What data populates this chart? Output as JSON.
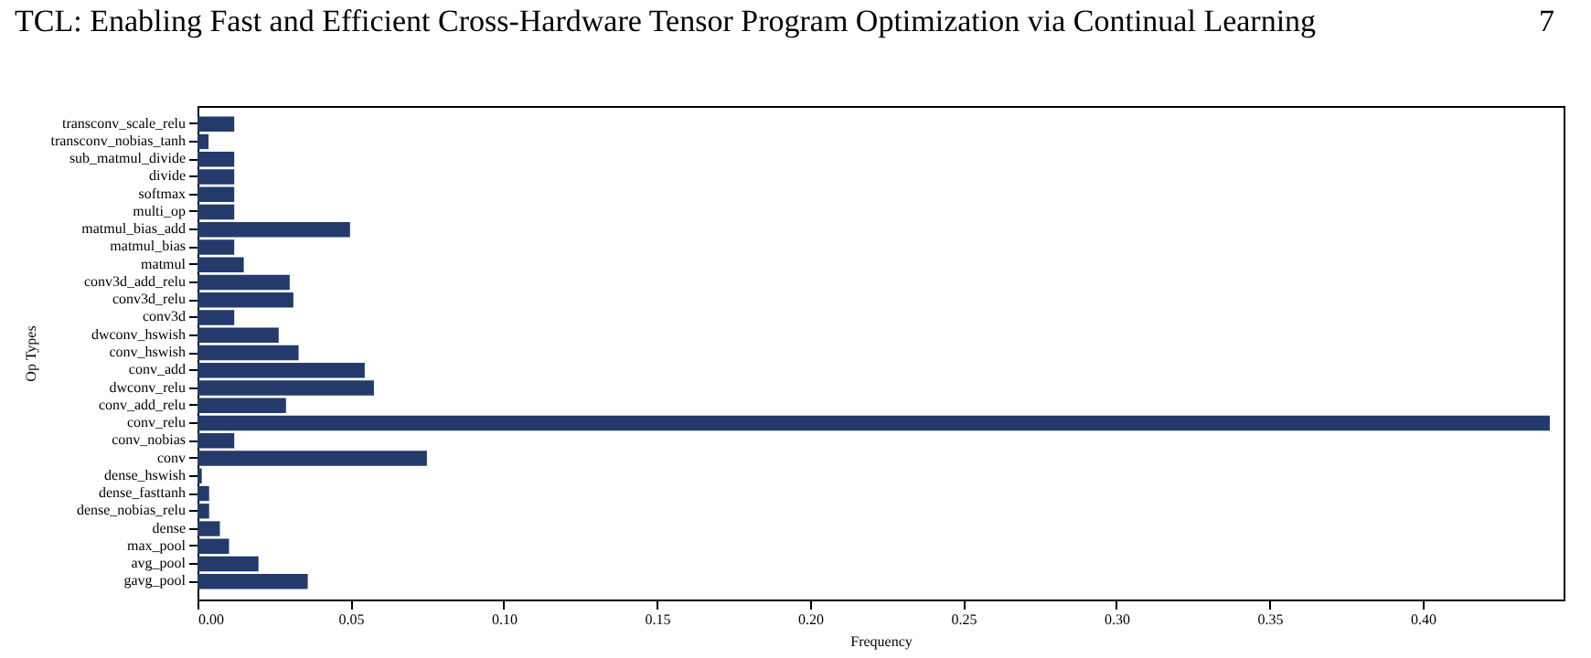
{
  "chart_data": {
    "type": "bar",
    "orientation": "horizontal",
    "title": "TCL: Enabling Fast and Efficient Cross-Hardware Tensor Program Optimization via Continual Learning",
    "annotations": [
      "7"
    ],
    "categories": [
      "transconv_scale_relu",
      "transconv_nobias_tanh",
      "sub_matmul_divide",
      "divide",
      "softmax",
      "multi_op",
      "matmul_bias_add",
      "matmul_bias",
      "matmul",
      "conv3d_add_relu",
      "conv3d_relu",
      "conv3d",
      "dwconv_hswish",
      "conv_hswish",
      "conv_add",
      "dwconv_relu",
      "conv_add_relu",
      "conv_relu",
      "conv_nobias",
      "conv",
      "dense_hswish",
      "dense_fasttanh",
      "dense_nobias_relu",
      "dense",
      "max_pool",
      "avg_pool",
      "gavg_pool"
    ],
    "values": [
      0.012,
      0.0036,
      0.012,
      0.012,
      0.012,
      0.012,
      0.0498,
      0.012,
      0.0151,
      0.0301,
      0.0313,
      0.012,
      0.0265,
      0.033,
      0.0546,
      0.0576,
      0.0289,
      0.4415,
      0.012,
      0.0749,
      0.0014,
      0.0038,
      0.0038,
      0.0073,
      0.0103,
      0.0199,
      0.036
    ],
    "color": "#243a6b",
    "xlabel": "Frequency",
    "ylabel": "Op Types",
    "xlim": [
      0,
      0.446
    ],
    "xticks": [
      {
        "value": 0,
        "label": "0.00"
      },
      {
        "value": 0.05,
        "label": "0.05"
      },
      {
        "value": 0.1,
        "label": "0.10"
      },
      {
        "value": 0.15,
        "label": "0.15"
      },
      {
        "value": 0.2,
        "label": "0.20"
      },
      {
        "value": 0.25,
        "label": "0.25"
      },
      {
        "value": 0.3,
        "label": "0.30"
      },
      {
        "value": 0.35,
        "label": "0.35"
      },
      {
        "value": 0.4,
        "label": "0.40"
      }
    ],
    "grid": false
  }
}
